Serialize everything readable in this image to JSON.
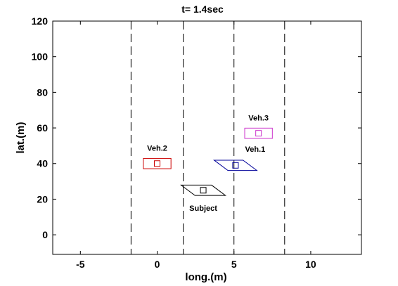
{
  "chart_data": {
    "type": "scatter",
    "title": "t= 1.4sec",
    "xlabel": "long.(m)",
    "ylabel": "lat.(m)",
    "xlim": [
      -6.8,
      13.3
    ],
    "ylim": [
      -11,
      120
    ],
    "xticks": [
      -5,
      0,
      5,
      10
    ],
    "yticks": [
      0,
      20,
      40,
      60,
      80,
      100,
      120
    ],
    "grid": false,
    "lane_lines_x": [
      -1.7,
      1.7,
      5.0,
      8.3
    ],
    "vehicles": [
      {
        "label": "Veh.2",
        "center": [
          0,
          40
        ],
        "color": "#cc0000",
        "shape": "rect",
        "length": 1.8,
        "width": 5
      },
      {
        "label": "Veh.3",
        "center": [
          6.6,
          57
        ],
        "color": "#cc33cc",
        "shape": "rect",
        "length": 1.8,
        "width": 5
      },
      {
        "label": "Veh.1",
        "center": [
          5.1,
          39
        ],
        "color": "#000099",
        "shape": "skew",
        "length": 1.7,
        "width": 5,
        "skew": 0.45
      },
      {
        "label": "Subject",
        "center": [
          3.0,
          25
        ],
        "color": "#000000",
        "shape": "skew",
        "length": 1.8,
        "width": 5,
        "skew": 0.45
      }
    ]
  }
}
